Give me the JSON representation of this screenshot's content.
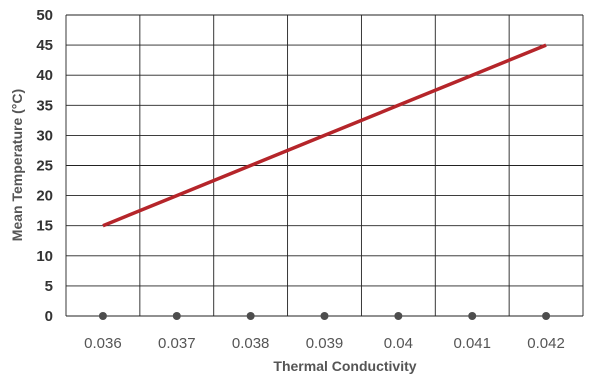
{
  "chart_data": {
    "type": "line",
    "title": "",
    "xlabel": "Thermal Conductivity",
    "ylabel": "Mean Temperature (°C)",
    "x": [
      0.036,
      0.037,
      0.038,
      0.039,
      0.04,
      0.041,
      0.042
    ],
    "x_tick_labels": [
      "0.036",
      "0.037",
      "0.038",
      "0.039",
      "0.04",
      "0.041",
      "0.042"
    ],
    "y_ticks": [
      0,
      5,
      10,
      15,
      20,
      25,
      30,
      35,
      40,
      45,
      50
    ],
    "ylim": [
      0,
      50
    ],
    "grid": true,
    "legend": "none",
    "series": [
      {
        "values": [
          15,
          20,
          25,
          30,
          35,
          40,
          45
        ],
        "color": "#b5252a"
      }
    ],
    "baseline_points": {
      "values": [
        0,
        0,
        0,
        0,
        0,
        0,
        0
      ],
      "color": "#4d4d4d"
    }
  }
}
